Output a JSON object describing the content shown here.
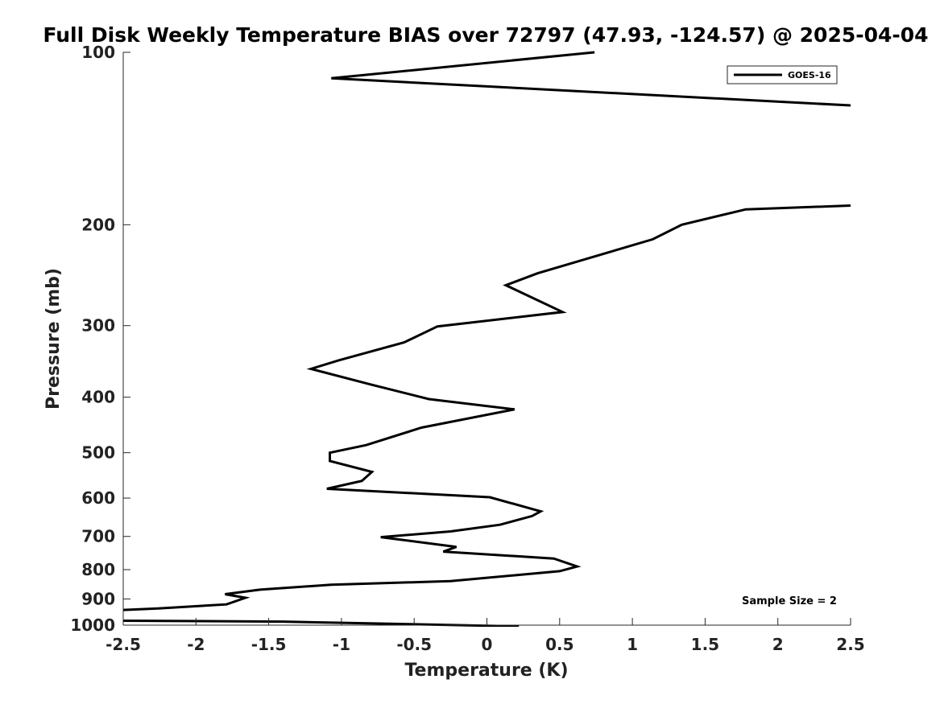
{
  "chart_data": {
    "type": "line",
    "title": "Full Disk Weekly Temperature BIAS over 72797 (47.93, -124.57) @ 2025-04-04",
    "xlabel": "Temperature (K)",
    "ylabel": "Pressure (mb)",
    "xlim": [
      -2.5,
      2.5
    ],
    "ylim": [
      1000,
      100
    ],
    "yscale": "log",
    "x_ticks": [
      "-2.5",
      "-2",
      "-1.5",
      "-1",
      "-0.5",
      "0",
      "0.5",
      "1",
      "1.5",
      "2",
      "2.5"
    ],
    "y_ticks": [
      "100",
      "200",
      "300",
      "400",
      "500",
      "600",
      "700",
      "800",
      "900",
      "1000"
    ],
    "grid": false,
    "legend_position": "top-right",
    "annotation": "Sample Size = 2",
    "series": [
      {
        "name": "GOES-16",
        "color": "#000000",
        "points": [
          {
            "x": 0.74,
            "p": 100
          },
          {
            "x": -1.07,
            "p": 111
          },
          {
            "x": 2.55,
            "p": 124
          },
          {
            "x": 2.55,
            "p": 185
          },
          {
            "x": 1.78,
            "p": 188
          },
          {
            "x": 1.34,
            "p": 200
          },
          {
            "x": 1.14,
            "p": 212
          },
          {
            "x": 0.35,
            "p": 243
          },
          {
            "x": 0.13,
            "p": 255
          },
          {
            "x": 0.52,
            "p": 284
          },
          {
            "x": -0.34,
            "p": 301
          },
          {
            "x": -0.57,
            "p": 321
          },
          {
            "x": -1.02,
            "p": 345
          },
          {
            "x": -1.21,
            "p": 357
          },
          {
            "x": -0.8,
            "p": 380
          },
          {
            "x": -0.4,
            "p": 403
          },
          {
            "x": 0.19,
            "p": 420
          },
          {
            "x": -0.45,
            "p": 452
          },
          {
            "x": -0.83,
            "p": 485
          },
          {
            "x": -1.08,
            "p": 500
          },
          {
            "x": -1.08,
            "p": 517
          },
          {
            "x": -0.79,
            "p": 540
          },
          {
            "x": -0.86,
            "p": 560
          },
          {
            "x": -1.1,
            "p": 578
          },
          {
            "x": 0.02,
            "p": 598
          },
          {
            "x": 0.37,
            "p": 633
          },
          {
            "x": 0.31,
            "p": 645
          },
          {
            "x": 0.09,
            "p": 668
          },
          {
            "x": -0.25,
            "p": 686
          },
          {
            "x": -0.73,
            "p": 702
          },
          {
            "x": -0.21,
            "p": 730
          },
          {
            "x": -0.3,
            "p": 744
          },
          {
            "x": 0.46,
            "p": 765
          },
          {
            "x": 0.62,
            "p": 790
          },
          {
            "x": 0.5,
            "p": 805
          },
          {
            "x": -0.25,
            "p": 838
          },
          {
            "x": -1.07,
            "p": 850
          },
          {
            "x": -1.56,
            "p": 867
          },
          {
            "x": -1.8,
            "p": 883
          },
          {
            "x": -1.66,
            "p": 896
          },
          {
            "x": -1.79,
            "p": 920
          },
          {
            "x": -2.26,
            "p": 935
          },
          {
            "x": -2.55,
            "p": 942
          },
          {
            "x": -2.55,
            "p": 982
          },
          {
            "x": -1.4,
            "p": 986
          },
          {
            "x": 0.22,
            "p": 1005
          }
        ]
      }
    ]
  }
}
